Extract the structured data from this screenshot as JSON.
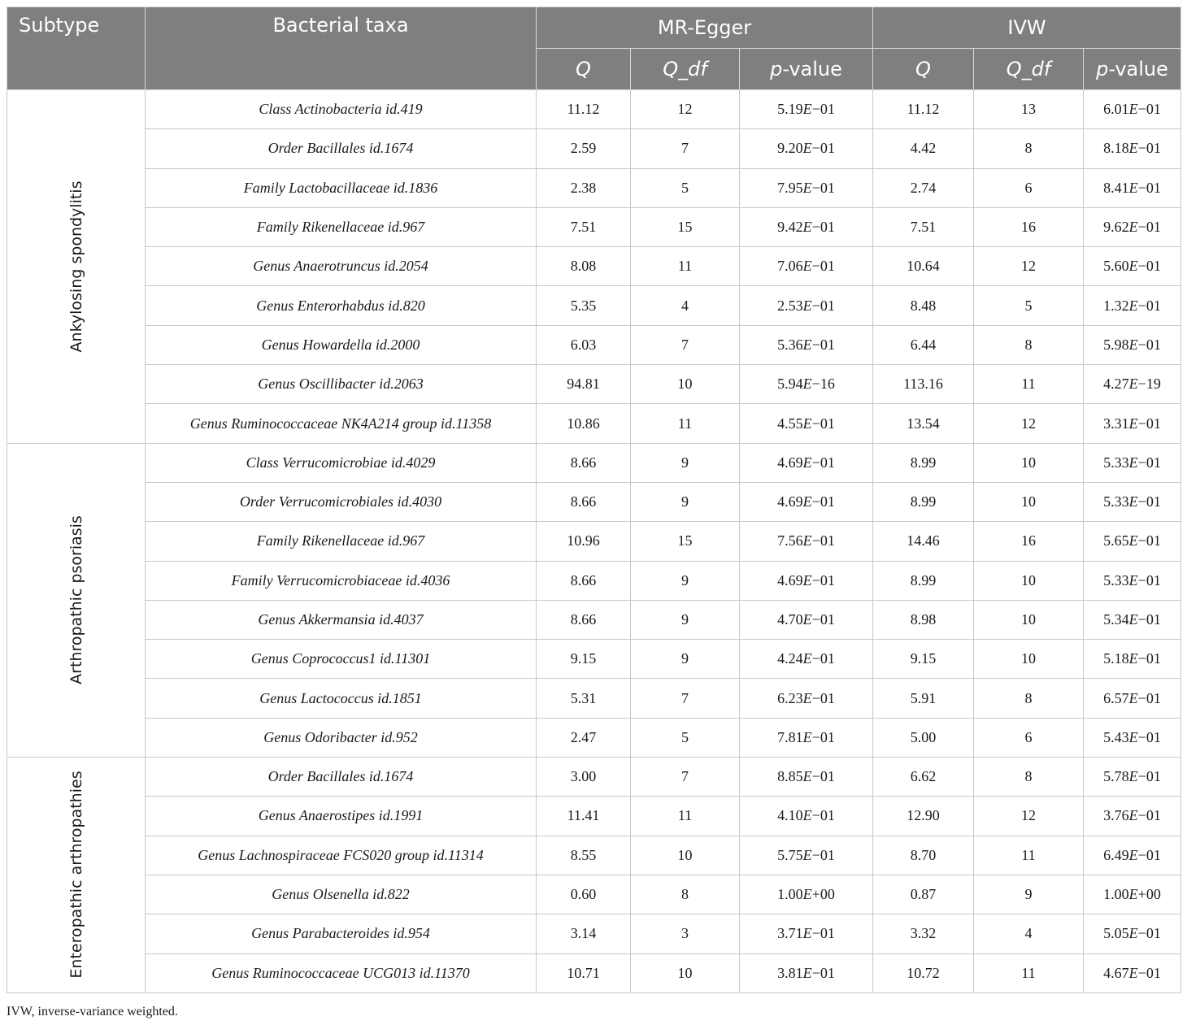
{
  "header": {
    "subtype": "Subtype",
    "taxa": "Bacterial taxa",
    "mr_egger": "MR-Egger",
    "ivw": "IVW",
    "q": "Q",
    "q_df": "Q_df",
    "p_letter": "p",
    "p_suffix": "-value"
  },
  "groups": [
    {
      "subtype": "Ankylosing spondylitis",
      "rows": [
        {
          "taxa": "Class Actinobacteria id.419",
          "eq": "11.12",
          "edf": "12",
          "ep": [
            "5.19",
            "−01"
          ],
          "iq": "11.12",
          "idf": "13",
          "ip": [
            "6.01",
            "−01"
          ]
        },
        {
          "taxa": "Order Bacillales id.1674",
          "eq": "2.59",
          "edf": "7",
          "ep": [
            "9.20",
            "−01"
          ],
          "iq": "4.42",
          "idf": "8",
          "ip": [
            "8.18",
            "−01"
          ]
        },
        {
          "taxa": "Family Lactobacillaceae id.1836",
          "eq": "2.38",
          "edf": "5",
          "ep": [
            "7.95",
            "−01"
          ],
          "iq": "2.74",
          "idf": "6",
          "ip": [
            "8.41",
            "−01"
          ]
        },
        {
          "taxa": "Family Rikenellaceae id.967",
          "eq": "7.51",
          "edf": "15",
          "ep": [
            "9.42",
            "−01"
          ],
          "iq": "7.51",
          "idf": "16",
          "ip": [
            "9.62",
            "−01"
          ]
        },
        {
          "taxa": "Genus Anaerotruncus id.2054",
          "eq": "8.08",
          "edf": "11",
          "ep": [
            "7.06",
            "−01"
          ],
          "iq": "10.64",
          "idf": "12",
          "ip": [
            "5.60",
            "−01"
          ]
        },
        {
          "taxa": "Genus Enterorhabdus id.820",
          "eq": "5.35",
          "edf": "4",
          "ep": [
            "2.53",
            "−01"
          ],
          "iq": "8.48",
          "idf": "5",
          "ip": [
            "1.32",
            "−01"
          ]
        },
        {
          "taxa": "Genus Howardella id.2000",
          "eq": "6.03",
          "edf": "7",
          "ep": [
            "5.36",
            "−01"
          ],
          "iq": "6.44",
          "idf": "8",
          "ip": [
            "5.98",
            "−01"
          ]
        },
        {
          "taxa": "Genus Oscillibacter id.2063",
          "eq": "94.81",
          "edf": "10",
          "ep": [
            "5.94",
            "−16"
          ],
          "iq": "113.16",
          "idf": "11",
          "ip": [
            "4.27",
            "−19"
          ]
        },
        {
          "taxa": "Genus Ruminococcaceae NK4A214 group id.11358",
          "eq": "10.86",
          "edf": "11",
          "ep": [
            "4.55",
            "−01"
          ],
          "iq": "13.54",
          "idf": "12",
          "ip": [
            "3.31",
            "−01"
          ]
        }
      ]
    },
    {
      "subtype": "Arthropathic psoriasis",
      "rows": [
        {
          "taxa": "Class Verrucomicrobiae id.4029",
          "eq": "8.66",
          "edf": "9",
          "ep": [
            "4.69",
            "−01"
          ],
          "iq": "8.99",
          "idf": "10",
          "ip": [
            "5.33",
            "−01"
          ]
        },
        {
          "taxa": "Order Verrucomicrobiales id.4030",
          "eq": "8.66",
          "edf": "9",
          "ep": [
            "4.69",
            "−01"
          ],
          "iq": "8.99",
          "idf": "10",
          "ip": [
            "5.33",
            "−01"
          ]
        },
        {
          "taxa": "Family Rikenellaceae id.967",
          "eq": "10.96",
          "edf": "15",
          "ep": [
            "7.56",
            "−01"
          ],
          "iq": "14.46",
          "idf": "16",
          "ip": [
            "5.65",
            "−01"
          ]
        },
        {
          "taxa": "Family Verrucomicrobiaceae id.4036",
          "eq": "8.66",
          "edf": "9",
          "ep": [
            "4.69",
            "−01"
          ],
          "iq": "8.99",
          "idf": "10",
          "ip": [
            "5.33",
            "−01"
          ]
        },
        {
          "taxa": "Genus Akkermansia id.4037",
          "eq": "8.66",
          "edf": "9",
          "ep": [
            "4.70",
            "−01"
          ],
          "iq": "8.98",
          "idf": "10",
          "ip": [
            "5.34",
            "−01"
          ]
        },
        {
          "taxa": "Genus Coprococcus1 id.11301",
          "eq": "9.15",
          "edf": "9",
          "ep": [
            "4.24",
            "−01"
          ],
          "iq": "9.15",
          "idf": "10",
          "ip": [
            "5.18",
            "−01"
          ]
        },
        {
          "taxa": "Genus Lactococcus id.1851",
          "eq": "5.31",
          "edf": "7",
          "ep": [
            "6.23",
            "−01"
          ],
          "iq": "5.91",
          "idf": "8",
          "ip": [
            "6.57",
            "−01"
          ]
        },
        {
          "taxa": "Genus Odoribacter id.952",
          "eq": "2.47",
          "edf": "5",
          "ep": [
            "7.81",
            "−01"
          ],
          "iq": "5.00",
          "idf": "6",
          "ip": [
            "5.43",
            "−01"
          ]
        }
      ]
    },
    {
      "subtype": "Enteropathic arthropathies",
      "rows": [
        {
          "taxa": "Order Bacillales id.1674",
          "eq": "3.00",
          "edf": "7",
          "ep": [
            "8.85",
            "−01"
          ],
          "iq": "6.62",
          "idf": "8",
          "ip": [
            "5.78",
            "−01"
          ]
        },
        {
          "taxa": "Genus Anaerostipes id.1991",
          "eq": "11.41",
          "edf": "11",
          "ep": [
            "4.10",
            "−01"
          ],
          "iq": "12.90",
          "idf": "12",
          "ip": [
            "3.76",
            "−01"
          ]
        },
        {
          "taxa": "Genus Lachnospiraceae FCS020 group id.11314",
          "eq": "8.55",
          "edf": "10",
          "ep": [
            "5.75",
            "−01"
          ],
          "iq": "8.70",
          "idf": "11",
          "ip": [
            "6.49",
            "−01"
          ]
        },
        {
          "taxa": "Genus Olsenella id.822",
          "eq": "0.60",
          "edf": "8",
          "ep": [
            "1.00",
            "+00"
          ],
          "iq": "0.87",
          "idf": "9",
          "ip": [
            "1.00",
            "+00"
          ]
        },
        {
          "taxa": "Genus Parabacteroides id.954",
          "eq": "3.14",
          "edf": "3",
          "ep": [
            "3.71",
            "−01"
          ],
          "iq": "3.32",
          "idf": "4",
          "ip": [
            "5.05",
            "−01"
          ]
        },
        {
          "taxa": "Genus Ruminococcaceae UCG013 id.11370",
          "eq": "10.71",
          "edf": "10",
          "ep": [
            "3.81",
            "−01"
          ],
          "iq": "10.72",
          "idf": "11",
          "ip": [
            "4.67",
            "−01"
          ]
        }
      ]
    }
  ],
  "footnote": "IVW, inverse-variance weighted."
}
